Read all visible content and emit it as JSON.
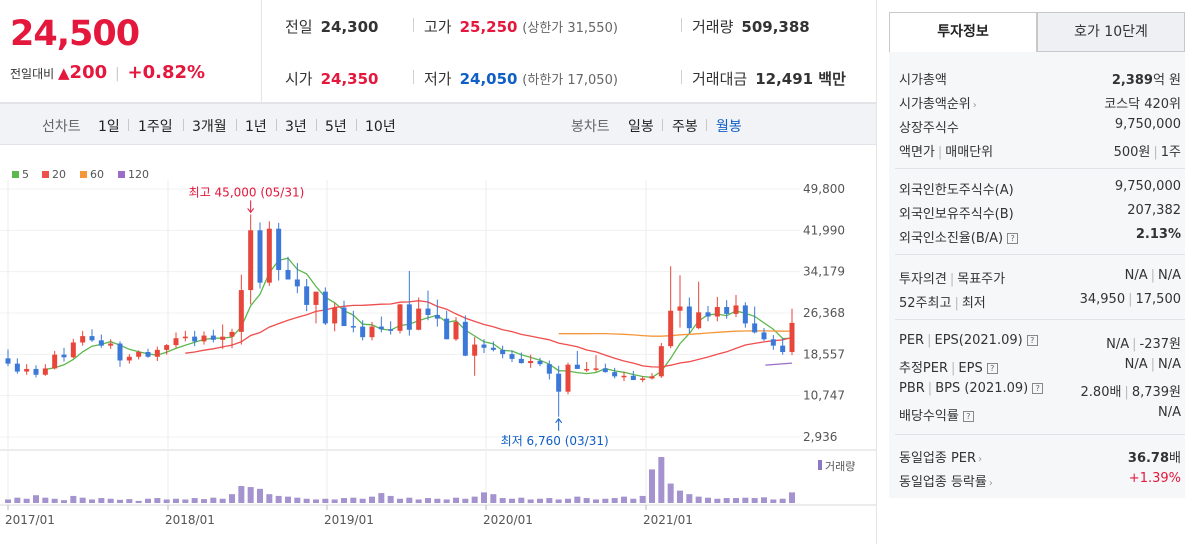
{
  "quote": {
    "price": "24,500",
    "change_label": "전일대비",
    "change_arrow": "▲",
    "change_value": "200",
    "change_pct": "+0.82%",
    "prev_close_label": "전일",
    "prev_close": "24,300",
    "high_label": "고가",
    "high": "25,250",
    "upper_limit_label": "(상한가 31,550)",
    "volume_label": "거래량",
    "volume": "509,388",
    "open_label": "시가",
    "open": "24,350",
    "low_label": "저가",
    "low": "24,050",
    "lower_limit_label": "(하한가 17,050)",
    "value_label": "거래대금",
    "value": "12,491 백만"
  },
  "period_bar": {
    "line_label": "선차트",
    "line_items": [
      "1일",
      "1주일",
      "3개월",
      "1년",
      "3년",
      "5년",
      "10년"
    ],
    "candle_label": "봉차트",
    "candle_items": [
      "일봉",
      "주봉",
      "월봉"
    ],
    "active_candle": "월봉"
  },
  "chart_data": {
    "type": "candlestick",
    "legend": [
      "5",
      "20",
      "60",
      "120"
    ],
    "ma_colors": {
      "5": "#5bb84c",
      "20": "#f04d4d",
      "60": "#f3973a",
      "120": "#9b6cc9"
    },
    "up_color": "#e8463a",
    "down_color": "#3b78d8",
    "y_ticks": [
      "49,800",
      "41,990",
      "34,179",
      "26,368",
      "18,557",
      "10,747",
      "2,936"
    ],
    "y_tick_values": [
      49800,
      41990,
      34179,
      26368,
      18557,
      10747,
      2936
    ],
    "ylim": [
      2936,
      49800
    ],
    "x_ticks": [
      "2017/01",
      "2018/01",
      "2019/01",
      "2020/01",
      "2021/01"
    ],
    "max_annotation": "최고 45,000 (05/31)",
    "min_annotation": "최저 6,760 (03/31)",
    "volume_label": "거래량",
    "candles": [
      {
        "o": 17800,
        "h": 19500,
        "l": 16300,
        "c": 16800
      },
      {
        "o": 16800,
        "h": 17800,
        "l": 14900,
        "c": 15300
      },
      {
        "o": 15300,
        "h": 16700,
        "l": 14700,
        "c": 15800
      },
      {
        "o": 15800,
        "h": 16500,
        "l": 14200,
        "c": 14700
      },
      {
        "o": 14700,
        "h": 16700,
        "l": 14500,
        "c": 15900
      },
      {
        "o": 15900,
        "h": 19200,
        "l": 15700,
        "c": 18500
      },
      {
        "o": 18500,
        "h": 19800,
        "l": 17200,
        "c": 18000
      },
      {
        "o": 18000,
        "h": 21500,
        "l": 17800,
        "c": 20800
      },
      {
        "o": 20800,
        "h": 23000,
        "l": 20200,
        "c": 22000
      },
      {
        "o": 22000,
        "h": 23300,
        "l": 20900,
        "c": 21200
      },
      {
        "o": 21200,
        "h": 22300,
        "l": 19800,
        "c": 20200
      },
      {
        "o": 20200,
        "h": 21400,
        "l": 19600,
        "c": 20600
      },
      {
        "o": 20600,
        "h": 21000,
        "l": 16200,
        "c": 17400
      },
      {
        "o": 17400,
        "h": 18600,
        "l": 16800,
        "c": 18100
      },
      {
        "o": 18100,
        "h": 19300,
        "l": 17600,
        "c": 19000
      },
      {
        "o": 19000,
        "h": 19600,
        "l": 17900,
        "c": 18100
      },
      {
        "o": 18100,
        "h": 20000,
        "l": 17300,
        "c": 19400
      },
      {
        "o": 19400,
        "h": 20500,
        "l": 18500,
        "c": 20300
      },
      {
        "o": 20300,
        "h": 22700,
        "l": 19800,
        "c": 21600
      },
      {
        "o": 21600,
        "h": 23000,
        "l": 21000,
        "c": 21900
      },
      {
        "o": 21900,
        "h": 23000,
        "l": 20100,
        "c": 21000
      },
      {
        "o": 21000,
        "h": 22900,
        "l": 20400,
        "c": 22100
      },
      {
        "o": 22100,
        "h": 23200,
        "l": 20800,
        "c": 21300
      },
      {
        "o": 21300,
        "h": 24200,
        "l": 19600,
        "c": 21900
      },
      {
        "o": 21900,
        "h": 23400,
        "l": 19700,
        "c": 22800
      },
      {
        "o": 22800,
        "h": 33600,
        "l": 20400,
        "c": 30700
      },
      {
        "o": 30700,
        "h": 45000,
        "l": 28000,
        "c": 42000
      },
      {
        "o": 42000,
        "h": 43500,
        "l": 31000,
        "c": 32100
      },
      {
        "o": 32100,
        "h": 43700,
        "l": 31500,
        "c": 42300
      },
      {
        "o": 42300,
        "h": 43400,
        "l": 32500,
        "c": 34500
      },
      {
        "o": 34500,
        "h": 37000,
        "l": 32700,
        "c": 32700
      },
      {
        "o": 32700,
        "h": 35800,
        "l": 30100,
        "c": 31400
      },
      {
        "o": 31400,
        "h": 32800,
        "l": 26700,
        "c": 27900
      },
      {
        "o": 27900,
        "h": 30400,
        "l": 24400,
        "c": 30400
      },
      {
        "o": 30400,
        "h": 31200,
        "l": 24100,
        "c": 24400
      },
      {
        "o": 24400,
        "h": 28300,
        "l": 22900,
        "c": 27400
      },
      {
        "o": 27400,
        "h": 28700,
        "l": 23900,
        "c": 23900
      },
      {
        "o": 23900,
        "h": 26800,
        "l": 22700,
        "c": 23800
      },
      {
        "o": 23800,
        "h": 25000,
        "l": 21200,
        "c": 21800
      },
      {
        "o": 21800,
        "h": 24700,
        "l": 21200,
        "c": 23800
      },
      {
        "o": 23800,
        "h": 25700,
        "l": 22700,
        "c": 23300
      },
      {
        "o": 23300,
        "h": 24800,
        "l": 22300,
        "c": 23000
      },
      {
        "o": 23000,
        "h": 28100,
        "l": 22500,
        "c": 28000
      },
      {
        "o": 28000,
        "h": 34300,
        "l": 22100,
        "c": 23200
      },
      {
        "o": 23200,
        "h": 29300,
        "l": 23100,
        "c": 27200
      },
      {
        "o": 27200,
        "h": 30600,
        "l": 25000,
        "c": 26000
      },
      {
        "o": 26000,
        "h": 28900,
        "l": 23800,
        "c": 25300
      },
      {
        "o": 25300,
        "h": 26800,
        "l": 21400,
        "c": 21400
      },
      {
        "o": 21400,
        "h": 25600,
        "l": 21100,
        "c": 24700
      },
      {
        "o": 24700,
        "h": 25900,
        "l": 18200,
        "c": 18300
      },
      {
        "o": 18300,
        "h": 21800,
        "l": 14500,
        "c": 20400
      },
      {
        "o": 20400,
        "h": 21400,
        "l": 18800,
        "c": 19800
      },
      {
        "o": 19800,
        "h": 21000,
        "l": 19100,
        "c": 19400
      },
      {
        "o": 19400,
        "h": 20200,
        "l": 17800,
        "c": 18600
      },
      {
        "o": 18600,
        "h": 19300,
        "l": 17100,
        "c": 17700
      },
      {
        "o": 17700,
        "h": 18900,
        "l": 16800,
        "c": 16900
      },
      {
        "o": 16900,
        "h": 18500,
        "l": 16000,
        "c": 17300
      },
      {
        "o": 17300,
        "h": 17900,
        "l": 16300,
        "c": 16700
      },
      {
        "o": 16700,
        "h": 17400,
        "l": 13800,
        "c": 14900
      },
      {
        "o": 14900,
        "h": 16400,
        "l": 6760,
        "c": 11500
      },
      {
        "o": 11500,
        "h": 17000,
        "l": 11000,
        "c": 16600
      },
      {
        "o": 16600,
        "h": 19200,
        "l": 15800,
        "c": 15800
      },
      {
        "o": 15800,
        "h": 17100,
        "l": 15200,
        "c": 15800
      },
      {
        "o": 15800,
        "h": 18400,
        "l": 15300,
        "c": 15900
      },
      {
        "o": 15900,
        "h": 16800,
        "l": 15100,
        "c": 15200
      },
      {
        "o": 15200,
        "h": 16000,
        "l": 14000,
        "c": 14400
      },
      {
        "o": 14400,
        "h": 15300,
        "l": 13500,
        "c": 14500
      },
      {
        "o": 14500,
        "h": 15400,
        "l": 13700,
        "c": 13700
      },
      {
        "o": 13700,
        "h": 14400,
        "l": 13300,
        "c": 14000
      },
      {
        "o": 14000,
        "h": 15000,
        "l": 13800,
        "c": 14400
      },
      {
        "o": 14400,
        "h": 20700,
        "l": 14100,
        "c": 20100
      },
      {
        "o": 20100,
        "h": 35200,
        "l": 19700,
        "c": 26800
      },
      {
        "o": 26800,
        "h": 33500,
        "l": 23600,
        "c": 27600
      },
      {
        "o": 27600,
        "h": 29300,
        "l": 22500,
        "c": 23500
      },
      {
        "o": 23500,
        "h": 32300,
        "l": 23300,
        "c": 26500
      },
      {
        "o": 26500,
        "h": 27700,
        "l": 24800,
        "c": 25700
      },
      {
        "o": 25700,
        "h": 29400,
        "l": 24800,
        "c": 27500
      },
      {
        "o": 27500,
        "h": 28800,
        "l": 25300,
        "c": 26200
      },
      {
        "o": 26200,
        "h": 29800,
        "l": 25600,
        "c": 27800
      },
      {
        "o": 27800,
        "h": 28400,
        "l": 23600,
        "c": 24400
      },
      {
        "o": 24400,
        "h": 27600,
        "l": 22500,
        "c": 22700
      },
      {
        "o": 22700,
        "h": 23500,
        "l": 21100,
        "c": 21400
      },
      {
        "o": 21400,
        "h": 22200,
        "l": 19400,
        "c": 20200
      },
      {
        "o": 20200,
        "h": 21600,
        "l": 18500,
        "c": 19000
      },
      {
        "o": 19000,
        "h": 27200,
        "l": 18400,
        "c": 24500
      }
    ],
    "volumes": [
      10,
      15,
      12,
      22,
      15,
      12,
      8,
      20,
      15,
      10,
      14,
      12,
      9,
      11,
      6,
      12,
      14,
      10,
      12,
      10,
      14,
      11,
      15,
      12,
      25,
      48,
      45,
      40,
      25,
      20,
      18,
      15,
      12,
      10,
      12,
      10,
      14,
      15,
      12,
      18,
      28,
      20,
      12,
      15,
      10,
      14,
      12,
      10,
      15,
      12,
      18,
      30,
      25,
      14,
      12,
      15,
      10,
      12,
      14,
      10,
      12,
      18,
      14,
      10,
      12,
      14,
      18,
      12,
      20,
      95,
      130,
      55,
      35,
      25,
      18,
      15,
      12,
      14,
      14,
      15,
      14,
      16,
      10,
      12,
      30
    ]
  },
  "info": {
    "tab_invest": "투자정보",
    "tab_orderbook": "호가 10단계",
    "rows1": [
      {
        "label": "시가총액",
        "value_b": "2,389",
        "value": "억 원"
      },
      {
        "label": "시가총액순위",
        "value": "코스닥 420위"
      },
      {
        "label": "상장주식수",
        "value": "9,750,000"
      },
      {
        "label": "액면가",
        "label2": "매매단위",
        "value": "500원",
        "value2": "1주"
      }
    ],
    "rows2": [
      {
        "label": "외국인한도주식수(A)",
        "value": "9,750,000"
      },
      {
        "label": "외국인보유주식수(B)",
        "value": "207,382"
      },
      {
        "label": "외국인소진율(B/A)",
        "value": "2.13%"
      }
    ],
    "rows3": [
      {
        "label": "투자의견",
        "label2": "목표주가",
        "value": "N/A",
        "value2": "N/A"
      },
      {
        "label": "52주최고",
        "label2": "최저",
        "value": "34,950",
        "value2": "17,500"
      }
    ],
    "rows4": [
      {
        "label": "PER",
        "label2": "EPS(2021.09)",
        "value": "N/A",
        "value2": "-237원"
      },
      {
        "label": "추정PER",
        "label2": "EPS",
        "value": "N/A",
        "value2": "N/A"
      },
      {
        "label": "PBR",
        "label2": "BPS (2021.09)",
        "value": "2.80배",
        "value2": "8,739원"
      },
      {
        "label": "배당수익률",
        "value": "N/A"
      }
    ],
    "rows5": [
      {
        "label": "동일업종 PER",
        "value_b": "36.78",
        "value": "배"
      },
      {
        "label": "동일업종 등락률",
        "value": "+1.39%"
      }
    ]
  }
}
